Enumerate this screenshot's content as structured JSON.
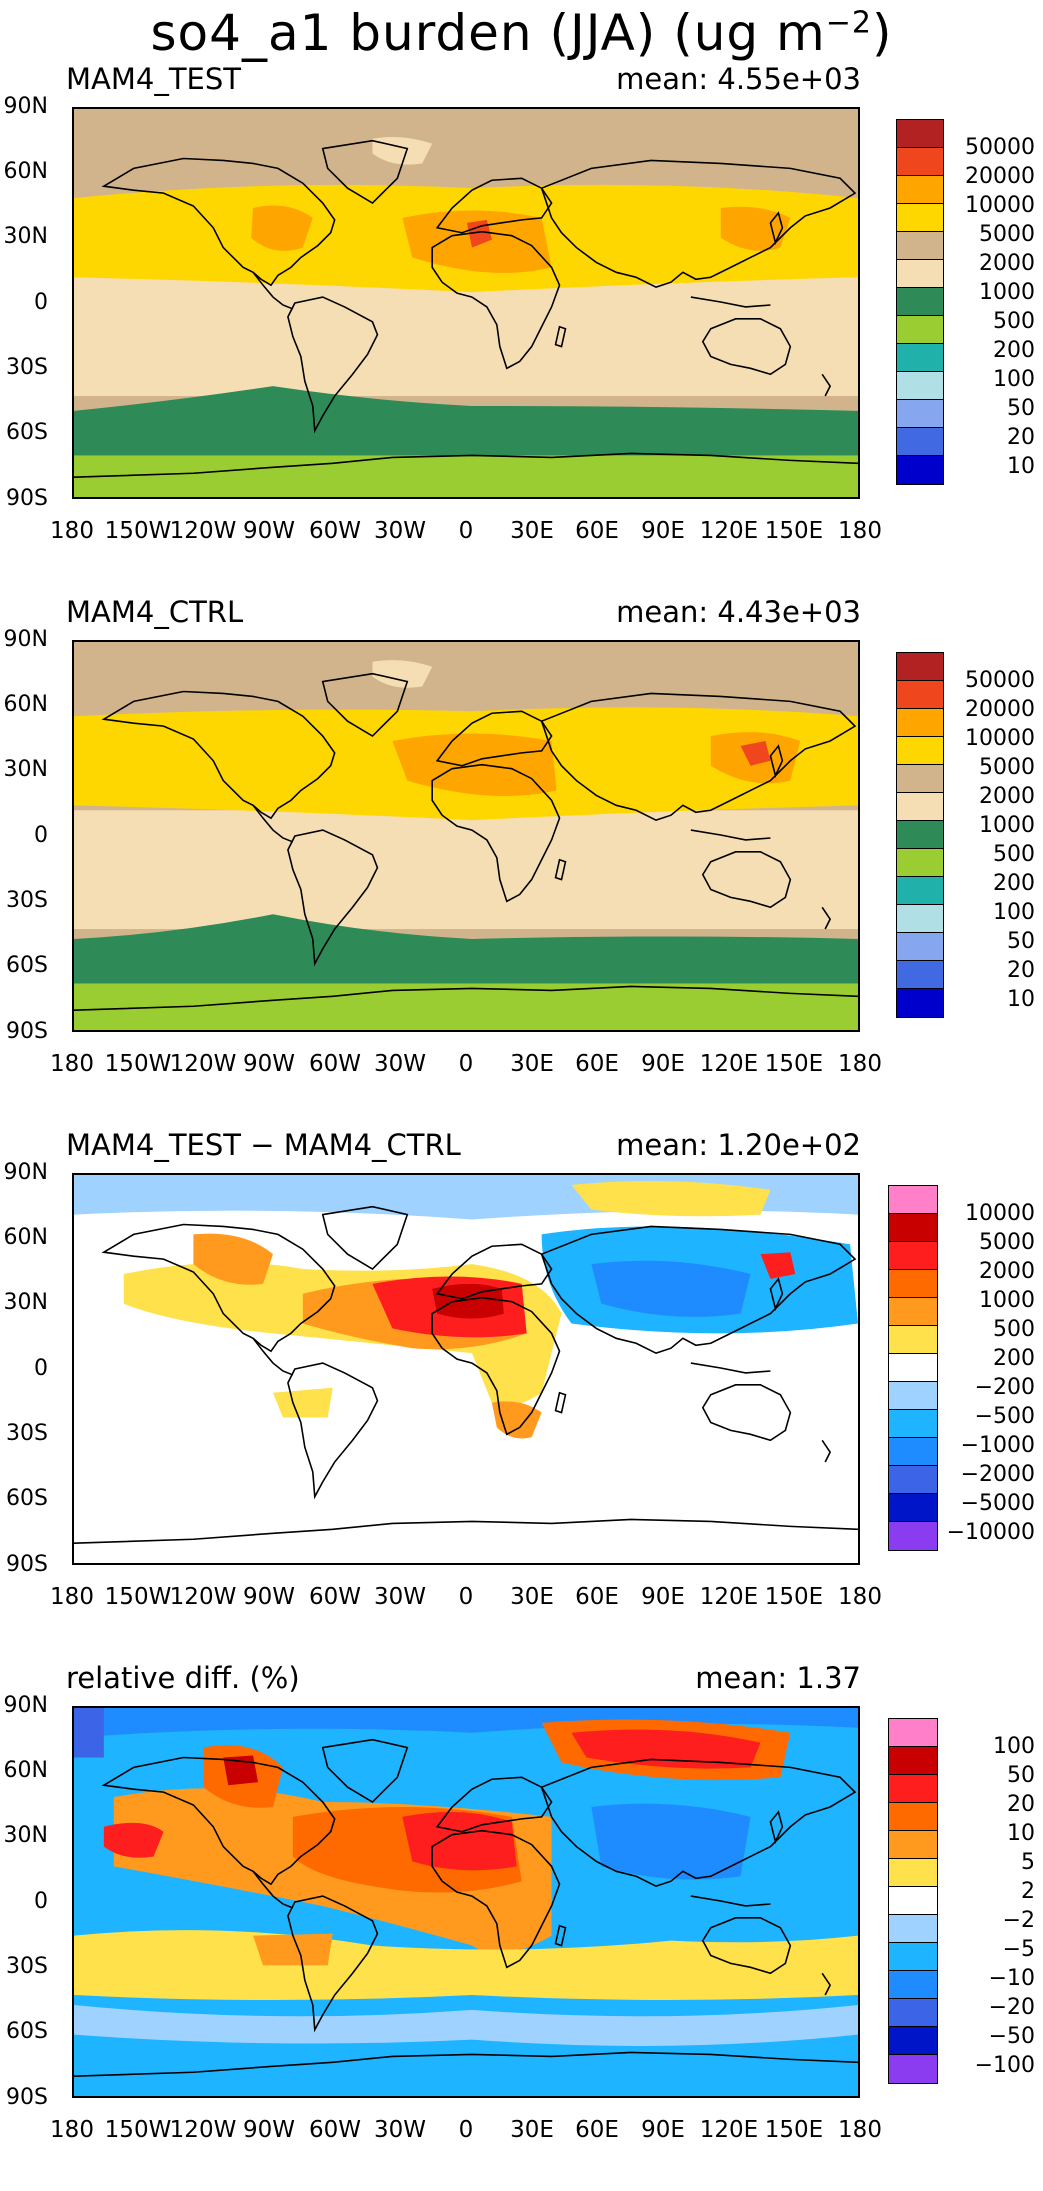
{
  "figure": {
    "title": "so4_a1 burden (JJA) (ug m",
    "title_exponent": "−2",
    "title_close": ")"
  },
  "axes": {
    "lat_labels": [
      "90N",
      "60N",
      "30N",
      "0",
      "30S",
      "60S",
      "90S"
    ],
    "lon_labels": [
      "180",
      "150W",
      "120W",
      "90W",
      "60W",
      "30W",
      "0",
      "30E",
      "60E",
      "90E",
      "120E",
      "150E",
      "180"
    ]
  },
  "panels": [
    {
      "name": "MAM4_TEST",
      "mean_label": "mean: 4.55e+03",
      "legend_colors": [
        "#b22222",
        "#f0461e",
        "#ffa500",
        "#ffd700",
        "#d2b48c",
        "#f5deb3",
        "#2e8b57",
        "#9acd32",
        "#20b2aa",
        "#b0e0e6",
        "#87a6f0",
        "#4169e1",
        "#0000cd"
      ],
      "legend_labels": [
        "50000",
        "20000",
        "10000",
        "5000",
        "2000",
        "1000",
        "500",
        "200",
        "100",
        "50",
        "20",
        "10"
      ]
    },
    {
      "name": "MAM4_CTRL",
      "mean_label": "mean: 4.43e+03",
      "legend_colors": [
        "#b22222",
        "#f0461e",
        "#ffa500",
        "#ffd700",
        "#d2b48c",
        "#f5deb3",
        "#2e8b57",
        "#9acd32",
        "#20b2aa",
        "#b0e0e6",
        "#87a6f0",
        "#4169e1",
        "#0000cd"
      ],
      "legend_labels": [
        "50000",
        "20000",
        "10000",
        "5000",
        "2000",
        "1000",
        "500",
        "200",
        "100",
        "50",
        "20",
        "10"
      ]
    },
    {
      "name": "MAM4_TEST − MAM4_CTRL",
      "mean_label": "mean: 1.20e+02",
      "legend_colors": [
        "#ff7fc8",
        "#c80000",
        "#ff1e1e",
        "#ff6a00",
        "#ff9a1e",
        "#ffe14b",
        "#ffffff",
        "#a0d2ff",
        "#1eb4ff",
        "#1e8cff",
        "#3c64e6",
        "#0014c8",
        "#8c3cf0"
      ],
      "legend_labels": [
        "10000",
        "5000",
        "2000",
        "1000",
        "500",
        "200",
        "−200",
        "−500",
        "−1000",
        "−2000",
        "−5000",
        "−10000"
      ]
    },
    {
      "name": "relative diff. (%)",
      "mean_label": "mean:   1.37",
      "legend_colors": [
        "#ff7fc8",
        "#c80000",
        "#ff1e1e",
        "#ff6a00",
        "#ff9a1e",
        "#ffe14b",
        "#ffffff",
        "#a0d2ff",
        "#1eb4ff",
        "#1e8cff",
        "#3c64e6",
        "#0014c8",
        "#8c3cf0"
      ],
      "legend_labels": [
        "100",
        "50",
        "20",
        "10",
        "5",
        "2",
        "−2",
        "−5",
        "−10",
        "−20",
        "−50",
        "−100"
      ]
    }
  ]
}
